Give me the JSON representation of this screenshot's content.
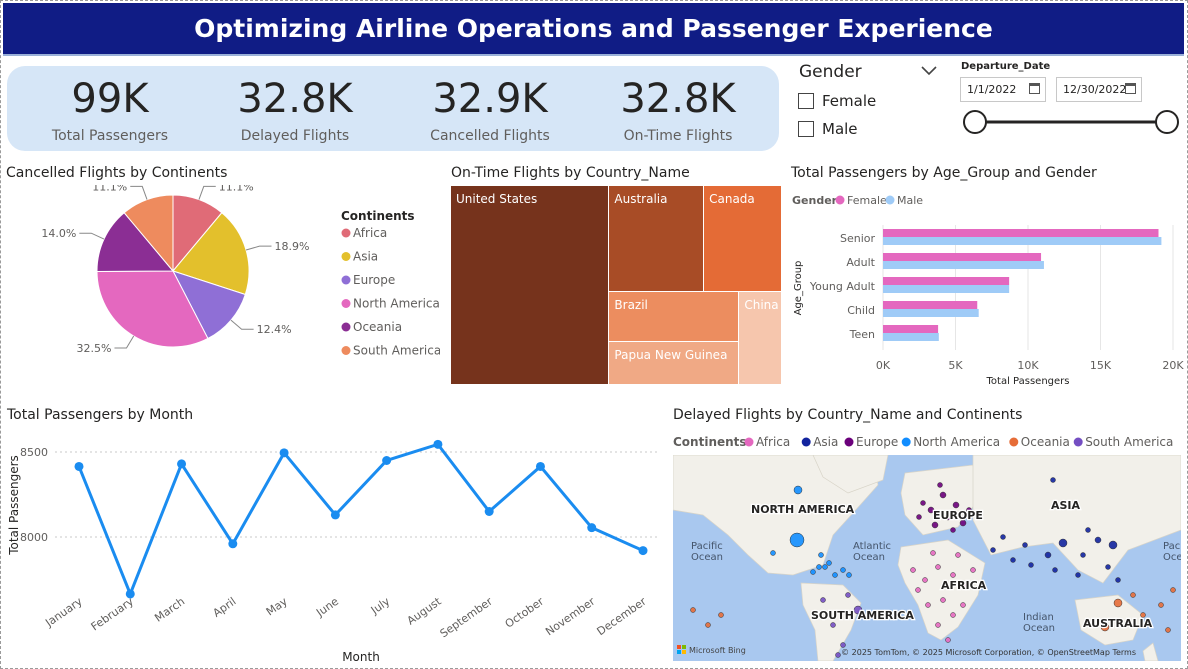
{
  "header": {
    "title": "Optimizing Airline Operations and Passenger Experience"
  },
  "kpis": [
    {
      "value": "99K",
      "label": "Total Passengers"
    },
    {
      "value": "32.8K",
      "label": "Delayed Flights"
    },
    {
      "value": "32.9K",
      "label": "Cancelled Flights"
    },
    {
      "value": "32.8K",
      "label": "On-Time Flights"
    }
  ],
  "gender_slicer": {
    "title": "Gender",
    "options": [
      "Female",
      "Male"
    ]
  },
  "date_slicer": {
    "title": "Departure_Date",
    "start": "1/1/2022",
    "end": "12/30/2022"
  },
  "colors": {
    "africa": "#e06b77",
    "asia": "#e3c02c",
    "europe": "#8f6fd6",
    "north_america": "#e468bf",
    "oceania": "#8b2e94",
    "south_america": "#ee8b5e",
    "female": "#e468bf",
    "male": "#9fcbf7",
    "line": "#1a8cf0"
  },
  "chart_data": [
    {
      "type": "pie",
      "title": "Cancelled Flights by Continents",
      "legend_title": "Continents",
      "legend_placement": "right",
      "slices": [
        {
          "name": "Africa",
          "percent": 11.1,
          "label": "11.1%"
        },
        {
          "name": "Asia",
          "percent": 18.9,
          "label": "18.9%"
        },
        {
          "name": "Europe",
          "percent": 12.4,
          "label": "12.4%"
        },
        {
          "name": "North America",
          "percent": 32.5,
          "label": "32.5%"
        },
        {
          "name": "Oceania",
          "percent": 14.0,
          "label": "14.0%"
        },
        {
          "name": "South America",
          "percent": 11.1,
          "label": "11.1%"
        }
      ]
    },
    {
      "type": "treemap",
      "title": "On-Time Flights by Country_Name",
      "items": [
        {
          "name": "United States",
          "value": 33.5,
          "color": "#76331c"
        },
        {
          "name": "Australia",
          "value": 10.7,
          "color": "#a84c26"
        },
        {
          "name": "Canada",
          "value": 8.8,
          "color": "#e46b36"
        },
        {
          "name": "Brazil",
          "value": 6.8,
          "color": "#ec8d5f"
        },
        {
          "name": "China",
          "value": 4.2,
          "color": "#f6c6ad"
        },
        {
          "name": "Papua New Guinea",
          "value": 6.0,
          "color": "#f0a985"
        }
      ]
    },
    {
      "type": "bar",
      "orientation": "horizontal",
      "title": "Total Passengers by Age_Group and Gender",
      "legend_title": "Gender",
      "legend_placement": "top-left",
      "xlabel": "Total Passengers",
      "ylabel": "Age_Group",
      "categories": [
        "Senior",
        "Adult",
        "Young Adult",
        "Child",
        "Teen"
      ],
      "series": [
        {
          "name": "Female",
          "values": [
            19000,
            10900,
            8700,
            6500,
            3800
          ]
        },
        {
          "name": "Male",
          "values": [
            19200,
            11100,
            8700,
            6600,
            3850
          ]
        }
      ],
      "xlim": [
        0,
        20000
      ],
      "xticks": [
        0,
        5000,
        10000,
        15000,
        20000
      ],
      "xtick_labels": [
        "0K",
        "5K",
        "10K",
        "15K",
        "20K"
      ]
    },
    {
      "type": "line",
      "title": "Total Passengers by Month",
      "xlabel": "Month",
      "ylabel": "Total Passengers",
      "categories": [
        "January",
        "February",
        "March",
        "April",
        "May",
        "June",
        "July",
        "August",
        "September",
        "October",
        "November",
        "December"
      ],
      "values": [
        8415,
        7665,
        8430,
        7960,
        8495,
        8130,
        8450,
        8545,
        8150,
        8415,
        8055,
        7920
      ],
      "ylim": [
        7600,
        8600
      ],
      "yticks": [
        8000,
        8500
      ],
      "grid": true
    },
    {
      "type": "map",
      "title": "Delayed Flights by Country_Name and Continents",
      "legend_title": "Continents",
      "legend_placement": "top-left",
      "legend": [
        {
          "name": "Africa",
          "color": "#e468bf"
        },
        {
          "name": "Asia",
          "color": "#12239e"
        },
        {
          "name": "Europe",
          "color": "#6b007b"
        },
        {
          "name": "North America",
          "color": "#118dff"
        },
        {
          "name": "Oceania",
          "color": "#e66c37"
        },
        {
          "name": "South America",
          "color": "#744ec2"
        }
      ],
      "labels": [
        "NORTH AMERICA",
        "EUROPE",
        "ASIA",
        "AFRICA",
        "SOUTH AMERICA",
        "AUSTRALIA"
      ],
      "ocean_labels": [
        "Pacific Ocean",
        "Atlantic Ocean",
        "Indian Ocean",
        "Pacific Ocean"
      ],
      "attribution": "© 2025 TomTom, © 2025 Microsoft Corporation, © OpenStreetMap  Terms",
      "brand": "Microsoft Bing"
    }
  ]
}
